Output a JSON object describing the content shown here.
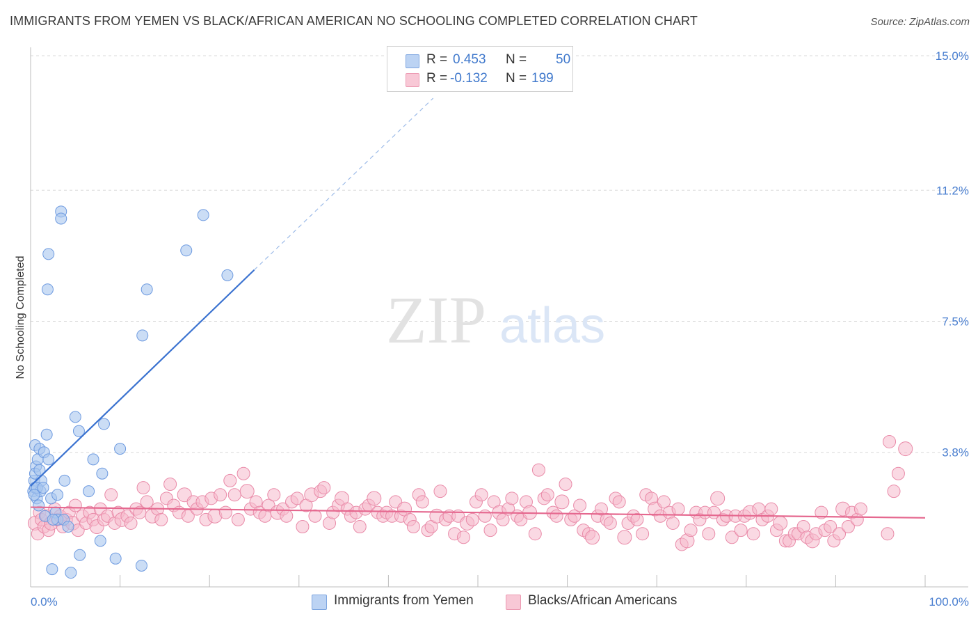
{
  "title": "IMMIGRANTS FROM YEMEN VS BLACK/AFRICAN AMERICAN NO SCHOOLING COMPLETED CORRELATION CHART",
  "source": "Source: ZipAtlas.com",
  "watermark": {
    "zip": "ZIP",
    "atlas": "atlas"
  },
  "legend": {
    "rows": [
      {
        "r_label": "R =",
        "r_value": "0.453",
        "n_label": "N =",
        "n_value": "50"
      },
      {
        "r_label": "R =",
        "r_value": "-0.132",
        "n_label": "N =",
        "n_value": "199"
      }
    ]
  },
  "bottom_legend": {
    "series1": "Immigrants from Yemen",
    "series2": "Blacks/African Americans"
  },
  "colors": {
    "blue_fill": "#a9c6ef",
    "blue_stroke": "#6d9ae0",
    "blue_line": "#3a72d0",
    "pink_fill": "#f6b9cc",
    "pink_stroke": "#e98aa8",
    "pink_line": "#e5688f",
    "tick_text": "#4a7fd0"
  },
  "chart_data": {
    "type": "scatter",
    "title": "IMMIGRANTS FROM YEMEN VS BLACK/AFRICAN AMERICAN NO SCHOOLING COMPLETED CORRELATION CHART",
    "xlabel": "",
    "ylabel": "No Schooling Completed",
    "xlim": [
      0,
      100
    ],
    "ylim": [
      0,
      15.8
    ],
    "x_tick_labels": [
      "0.0%",
      "100.0%"
    ],
    "y_ticks": [
      3.8,
      7.5,
      11.2,
      15.0
    ],
    "y_tick_labels": [
      "3.8%",
      "7.5%",
      "11.2%",
      "15.0%"
    ],
    "series": [
      {
        "name": "Immigrants from Yemen",
        "R": 0.453,
        "N": 50,
        "trend": {
          "x0": 0.0,
          "y0": 2.85,
          "x_solid_end": 25.0,
          "y_solid_end": 8.95,
          "x_dash_end": 45.0,
          "y_dash_end": 13.8
        },
        "points": [
          [
            0.5,
            4.0
          ],
          [
            0.6,
            3.4
          ],
          [
            0.4,
            3.0
          ],
          [
            0.8,
            3.6
          ],
          [
            1.0,
            3.9
          ],
          [
            0.3,
            2.7
          ],
          [
            0.5,
            2.8
          ],
          [
            0.7,
            2.5
          ],
          [
            0.9,
            2.3
          ],
          [
            1.2,
            3.0
          ],
          [
            1.5,
            3.8
          ],
          [
            1.8,
            4.3
          ],
          [
            2.0,
            3.6
          ],
          [
            2.3,
            2.5
          ],
          [
            2.8,
            2.1
          ],
          [
            3.0,
            1.9
          ],
          [
            1.6,
            2.0
          ],
          [
            1.1,
            2.7
          ],
          [
            0.7,
            2.8
          ],
          [
            0.4,
            2.6
          ],
          [
            0.5,
            3.2
          ],
          [
            1.0,
            3.3
          ],
          [
            1.4,
            2.8
          ],
          [
            2.0,
            9.4
          ],
          [
            1.9,
            8.4
          ],
          [
            3.4,
            10.6
          ],
          [
            3.4,
            10.4
          ],
          [
            3.0,
            2.6
          ],
          [
            3.7,
            1.9
          ],
          [
            3.8,
            3.0
          ],
          [
            5.0,
            4.8
          ],
          [
            5.4,
            4.4
          ],
          [
            7.0,
            3.6
          ],
          [
            6.5,
            2.7
          ],
          [
            8.0,
            3.2
          ],
          [
            8.2,
            4.6
          ],
          [
            10.0,
            3.9
          ],
          [
            12.5,
            7.1
          ],
          [
            13.0,
            8.4
          ],
          [
            17.4,
            9.5
          ],
          [
            19.3,
            10.5
          ],
          [
            22.0,
            8.8
          ],
          [
            2.5,
            1.9
          ],
          [
            4.2,
            1.7
          ],
          [
            5.5,
            0.9
          ],
          [
            7.8,
            1.3
          ],
          [
            9.5,
            0.8
          ],
          [
            12.4,
            0.6
          ],
          [
            2.4,
            0.5
          ],
          [
            4.5,
            0.4
          ]
        ]
      },
      {
        "name": "Blacks/African Americans",
        "R": -0.132,
        "N": 199,
        "trend": {
          "x0": 0.0,
          "y0": 2.25,
          "x1": 100.0,
          "y1": 1.95
        },
        "points": [
          [
            0.5,
            1.8
          ],
          [
            0.8,
            1.5
          ],
          [
            1.0,
            2.1
          ],
          [
            1.2,
            1.9
          ],
          [
            1.5,
            1.7
          ],
          [
            1.8,
            2.0
          ],
          [
            2.0,
            1.6
          ],
          [
            2.3,
            1.8
          ],
          [
            2.7,
            2.2
          ],
          [
            3.0,
            1.9
          ],
          [
            3.3,
            2.0
          ],
          [
            3.6,
            1.7
          ],
          [
            4.0,
            1.9
          ],
          [
            4.3,
            2.1
          ],
          [
            4.7,
            1.8
          ],
          [
            5.0,
            2.3
          ],
          [
            5.3,
            1.6
          ],
          [
            5.8,
            2.0
          ],
          [
            6.2,
            1.8
          ],
          [
            6.6,
            2.1
          ],
          [
            7.0,
            1.9
          ],
          [
            7.4,
            1.7
          ],
          [
            7.8,
            2.2
          ],
          [
            8.2,
            1.9
          ],
          [
            8.6,
            2.0
          ],
          [
            9.0,
            2.6
          ],
          [
            9.4,
            1.8
          ],
          [
            9.8,
            2.1
          ],
          [
            10.2,
            1.9
          ],
          [
            10.8,
            2.0
          ],
          [
            11.2,
            1.8
          ],
          [
            11.8,
            2.2
          ],
          [
            12.2,
            2.1
          ],
          [
            12.6,
            2.8
          ],
          [
            13.0,
            2.4
          ],
          [
            13.6,
            2.0
          ],
          [
            14.2,
            2.2
          ],
          [
            14.6,
            1.9
          ],
          [
            15.2,
            2.5
          ],
          [
            15.6,
            2.9
          ],
          [
            16.0,
            2.3
          ],
          [
            16.6,
            2.1
          ],
          [
            17.2,
            2.6
          ],
          [
            17.6,
            2.0
          ],
          [
            18.2,
            2.4
          ],
          [
            18.6,
            2.2
          ],
          [
            19.2,
            2.4
          ],
          [
            19.6,
            1.9
          ],
          [
            20.2,
            2.5
          ],
          [
            20.6,
            2.0
          ],
          [
            21.2,
            2.6
          ],
          [
            21.8,
            2.1
          ],
          [
            22.3,
            3.0
          ],
          [
            22.8,
            2.6
          ],
          [
            23.2,
            1.9
          ],
          [
            23.8,
            3.2
          ],
          [
            24.2,
            2.7
          ],
          [
            24.6,
            2.2
          ],
          [
            25.2,
            2.4
          ],
          [
            25.6,
            2.1
          ],
          [
            26.2,
            2.0
          ],
          [
            26.6,
            2.3
          ],
          [
            27.2,
            2.6
          ],
          [
            27.6,
            2.1
          ],
          [
            28.2,
            2.2
          ],
          [
            28.6,
            2.0
          ],
          [
            29.2,
            2.4
          ],
          [
            29.8,
            2.5
          ],
          [
            30.4,
            1.7
          ],
          [
            30.8,
            2.3
          ],
          [
            31.4,
            2.6
          ],
          [
            31.8,
            2.0
          ],
          [
            32.4,
            2.7
          ],
          [
            32.8,
            2.8
          ],
          [
            33.4,
            1.8
          ],
          [
            33.8,
            2.1
          ],
          [
            34.4,
            2.3
          ],
          [
            34.8,
            2.5
          ],
          [
            35.4,
            2.2
          ],
          [
            35.8,
            2.0
          ],
          [
            36.4,
            2.1
          ],
          [
            36.8,
            1.7
          ],
          [
            37.4,
            2.2
          ],
          [
            37.8,
            2.3
          ],
          [
            38.4,
            2.5
          ],
          [
            38.8,
            2.1
          ],
          [
            39.4,
            2.0
          ],
          [
            39.8,
            2.1
          ],
          [
            40.4,
            2.0
          ],
          [
            40.8,
            2.4
          ],
          [
            41.4,
            2.0
          ],
          [
            41.8,
            2.2
          ],
          [
            42.4,
            1.9
          ],
          [
            42.8,
            1.7
          ],
          [
            43.4,
            2.6
          ],
          [
            43.8,
            2.4
          ],
          [
            44.4,
            1.6
          ],
          [
            44.8,
            1.7
          ],
          [
            45.4,
            2.0
          ],
          [
            45.8,
            2.7
          ],
          [
            46.4,
            1.9
          ],
          [
            46.8,
            2.0
          ],
          [
            47.4,
            1.5
          ],
          [
            47.8,
            2.0
          ],
          [
            48.4,
            1.4
          ],
          [
            48.8,
            1.8
          ],
          [
            49.4,
            1.9
          ],
          [
            49.8,
            2.4
          ],
          [
            50.4,
            2.6
          ],
          [
            50.8,
            2.0
          ],
          [
            51.4,
            1.6
          ],
          [
            51.8,
            2.4
          ],
          [
            52.4,
            2.1
          ],
          [
            52.8,
            1.9
          ],
          [
            53.4,
            2.2
          ],
          [
            53.8,
            2.5
          ],
          [
            54.4,
            2.0
          ],
          [
            54.8,
            1.9
          ],
          [
            55.4,
            2.4
          ],
          [
            55.8,
            2.1
          ],
          [
            56.4,
            1.5
          ],
          [
            56.8,
            3.3
          ],
          [
            57.4,
            2.5
          ],
          [
            57.8,
            2.6
          ],
          [
            58.4,
            2.1
          ],
          [
            58.8,
            2.0
          ],
          [
            59.4,
            2.4
          ],
          [
            59.8,
            2.9
          ],
          [
            60.4,
            1.9
          ],
          [
            60.8,
            2.0
          ],
          [
            61.4,
            2.3
          ],
          [
            61.8,
            1.6
          ],
          [
            62.4,
            1.5
          ],
          [
            62.8,
            1.4
          ],
          [
            63.4,
            2.0
          ],
          [
            63.8,
            2.2
          ],
          [
            64.4,
            1.9
          ],
          [
            64.8,
            1.8
          ],
          [
            65.4,
            2.5
          ],
          [
            65.8,
            2.4
          ],
          [
            66.4,
            1.4
          ],
          [
            66.8,
            1.8
          ],
          [
            67.4,
            2.0
          ],
          [
            67.8,
            1.9
          ],
          [
            68.4,
            1.5
          ],
          [
            68.8,
            2.6
          ],
          [
            69.4,
            2.5
          ],
          [
            69.8,
            2.2
          ],
          [
            70.4,
            2.0
          ],
          [
            70.8,
            2.4
          ],
          [
            71.4,
            2.1
          ],
          [
            71.8,
            1.8
          ],
          [
            72.4,
            2.2
          ],
          [
            72.8,
            1.2
          ],
          [
            73.4,
            1.3
          ],
          [
            73.8,
            1.6
          ],
          [
            74.4,
            2.1
          ],
          [
            74.8,
            1.9
          ],
          [
            75.4,
            2.1
          ],
          [
            75.8,
            1.5
          ],
          [
            76.4,
            2.1
          ],
          [
            76.8,
            2.5
          ],
          [
            77.4,
            1.9
          ],
          [
            77.8,
            2.0
          ],
          [
            78.4,
            1.4
          ],
          [
            78.8,
            2.0
          ],
          [
            79.4,
            1.6
          ],
          [
            79.8,
            2.0
          ],
          [
            80.4,
            2.1
          ],
          [
            80.8,
            1.5
          ],
          [
            81.4,
            2.2
          ],
          [
            81.8,
            1.9
          ],
          [
            82.4,
            2.0
          ],
          [
            82.8,
            2.2
          ],
          [
            83.4,
            1.6
          ],
          [
            83.8,
            1.8
          ],
          [
            84.4,
            1.3
          ],
          [
            84.8,
            1.3
          ],
          [
            85.4,
            1.5
          ],
          [
            85.8,
            1.5
          ],
          [
            86.4,
            1.7
          ],
          [
            86.8,
            1.4
          ],
          [
            87.4,
            1.3
          ],
          [
            87.8,
            1.5
          ],
          [
            88.4,
            2.1
          ],
          [
            88.8,
            1.6
          ],
          [
            89.4,
            1.7
          ],
          [
            89.8,
            1.3
          ],
          [
            90.4,
            1.5
          ],
          [
            90.8,
            2.2
          ],
          [
            91.4,
            1.7
          ],
          [
            91.8,
            2.1
          ],
          [
            92.4,
            1.9
          ],
          [
            92.8,
            2.2
          ],
          [
            96.0,
            4.1
          ],
          [
            97.0,
            3.2
          ],
          [
            97.8,
            3.9
          ],
          [
            96.5,
            2.7
          ],
          [
            95.8,
            1.5
          ]
        ]
      }
    ]
  }
}
